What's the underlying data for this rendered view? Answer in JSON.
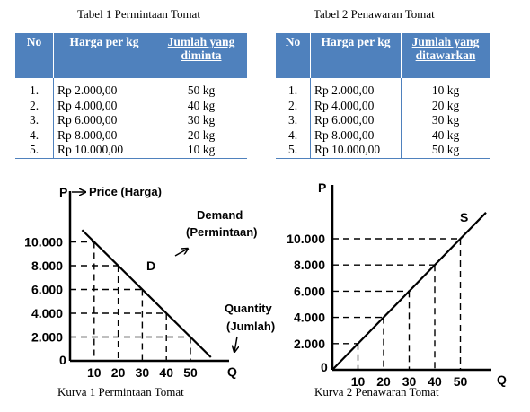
{
  "table1": {
    "caption": "Tabel 1 Permintaan Tomat",
    "headers": [
      "No",
      "Harga per kg",
      "Jumlah yang diminta"
    ],
    "rows": [
      [
        "1.",
        "Rp   2.000,00",
        "50 kg"
      ],
      [
        "2.",
        "Rp   4.000,00",
        "40 kg"
      ],
      [
        "3.",
        "Rp   6.000,00",
        "30 kg"
      ],
      [
        "4.",
        "Rp   8.000,00",
        "20 kg"
      ],
      [
        "5.",
        "Rp 10.000,00",
        "10 kg"
      ]
    ]
  },
  "table2": {
    "caption": "Tabel 2 Penawaran Tomat",
    "headers": [
      "No",
      "Harga per kg",
      "Jumlah yang ditawarkan"
    ],
    "rows": [
      [
        "1.",
        "Rp   2.000,00",
        "10 kg"
      ],
      [
        "2.",
        "Rp   4.000,00",
        "20 kg"
      ],
      [
        "3.",
        "Rp   6.000,00",
        "30 kg"
      ],
      [
        "4.",
        "Rp   8.000,00",
        "40 kg"
      ],
      [
        "5.",
        "Rp 10.000,00",
        "50 kg"
      ]
    ]
  },
  "chart_data": [
    {
      "type": "line",
      "caption": "Kurva 1 Permintaan Tomat",
      "x_axis_letter": "Q",
      "y_axis_letter": "P",
      "y_axis_note": "Price (Harga)",
      "x_axis_note": "Quantity (Jumlah)",
      "curve_label": "D",
      "curve_note": "Demand (Permintaan)",
      "x_ticks": [
        "10",
        "20",
        "30",
        "40",
        "50"
      ],
      "y_ticks": [
        "2.000",
        "4.000",
        "6.000",
        "8.000",
        "10.000"
      ],
      "origin_label": "0",
      "series": [
        {
          "x": [
            10,
            20,
            30,
            40,
            50
          ],
          "y": [
            10000,
            8000,
            6000,
            4000,
            2000
          ]
        }
      ],
      "colors": {
        "line": "#000000"
      }
    },
    {
      "type": "line",
      "caption": "Kurva 2 Penawaran Tomat",
      "x_axis_letter": "Q",
      "y_axis_letter": "P",
      "curve_label": "S",
      "x_ticks": [
        "10",
        "20",
        "30",
        "40",
        "50"
      ],
      "y_ticks": [
        "2.000",
        "4.000",
        "6.000",
        "8.000",
        "10.000"
      ],
      "origin_label": "0",
      "series": [
        {
          "x": [
            10,
            20,
            30,
            40,
            50
          ],
          "y": [
            2000,
            4000,
            6000,
            8000,
            10000
          ]
        }
      ],
      "colors": {
        "line": "#000000"
      }
    }
  ]
}
